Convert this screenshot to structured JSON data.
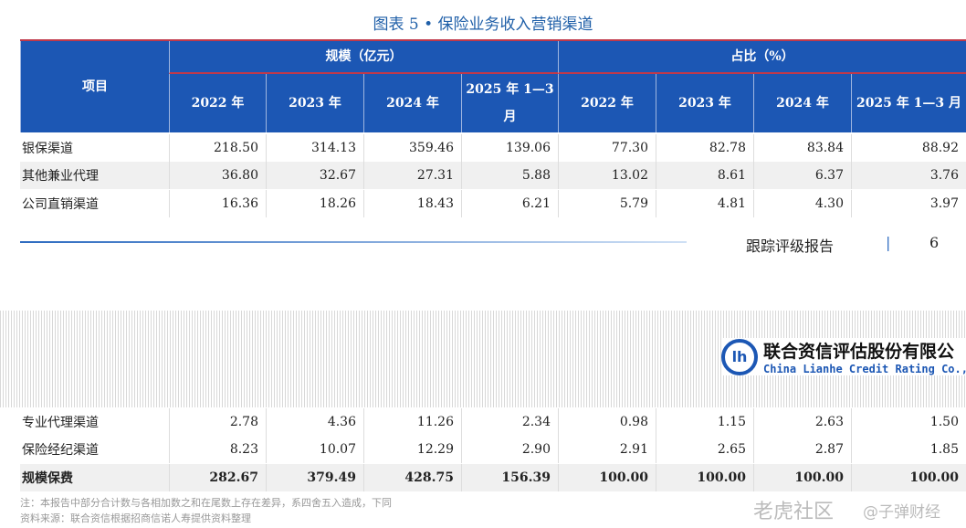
{
  "title": "图表 5 • 保险业务收入营销渠道",
  "header": {
    "item": "项目",
    "group_scale": "规模（亿元）",
    "group_share": "占比（%）",
    "years": [
      "2022 年",
      "2023 年",
      "2024 年",
      "2025 年 1—3 月",
      "2022 年",
      "2023 年",
      "2024 年",
      "2025 年 1—3 月"
    ]
  },
  "rows_top": [
    {
      "label": "银保渠道",
      "values": [
        "218.50",
        "314.13",
        "359.46",
        "139.06",
        "77.30",
        "82.78",
        "83.84",
        "88.92"
      ]
    },
    {
      "label": "其他兼业代理",
      "values": [
        "36.80",
        "32.67",
        "27.31",
        "5.88",
        "13.02",
        "8.61",
        "6.37",
        "3.76"
      ]
    },
    {
      "label": "公司直销渠道",
      "values": [
        "16.36",
        "18.26",
        "18.43",
        "6.21",
        "5.79",
        "4.81",
        "4.30",
        "3.97"
      ]
    }
  ],
  "footer": {
    "report": "跟踪评级报告",
    "sep": "|",
    "page": "6"
  },
  "logo": {
    "cn": "联合资信评估股份有限公",
    "en": "China Lianhe Credit Rating Co.,L",
    "mark": "lh"
  },
  "rows_bottom": [
    {
      "label": "专业代理渠道",
      "values": [
        "2.78",
        "4.36",
        "11.26",
        "2.34",
        "0.98",
        "1.15",
        "2.63",
        "1.50"
      ]
    },
    {
      "label": "保险经纪渠道",
      "values": [
        "8.23",
        "10.07",
        "12.29",
        "2.90",
        "2.91",
        "2.65",
        "2.87",
        "1.85"
      ]
    },
    {
      "label": "规模保费",
      "values": [
        "282.67",
        "379.49",
        "428.75",
        "156.39",
        "100.00",
        "100.00",
        "100.00",
        "100.00"
      ]
    }
  ],
  "notes": [
    "注：本报告中部分合计数与各相加数之和在尾数上存在差异，系四舍五入造成，下同",
    "资料来源：联合资信根据招商信诺人寿提供资料整理"
  ],
  "watermarks": [
    "老虎社区",
    "@子弹财经"
  ]
}
